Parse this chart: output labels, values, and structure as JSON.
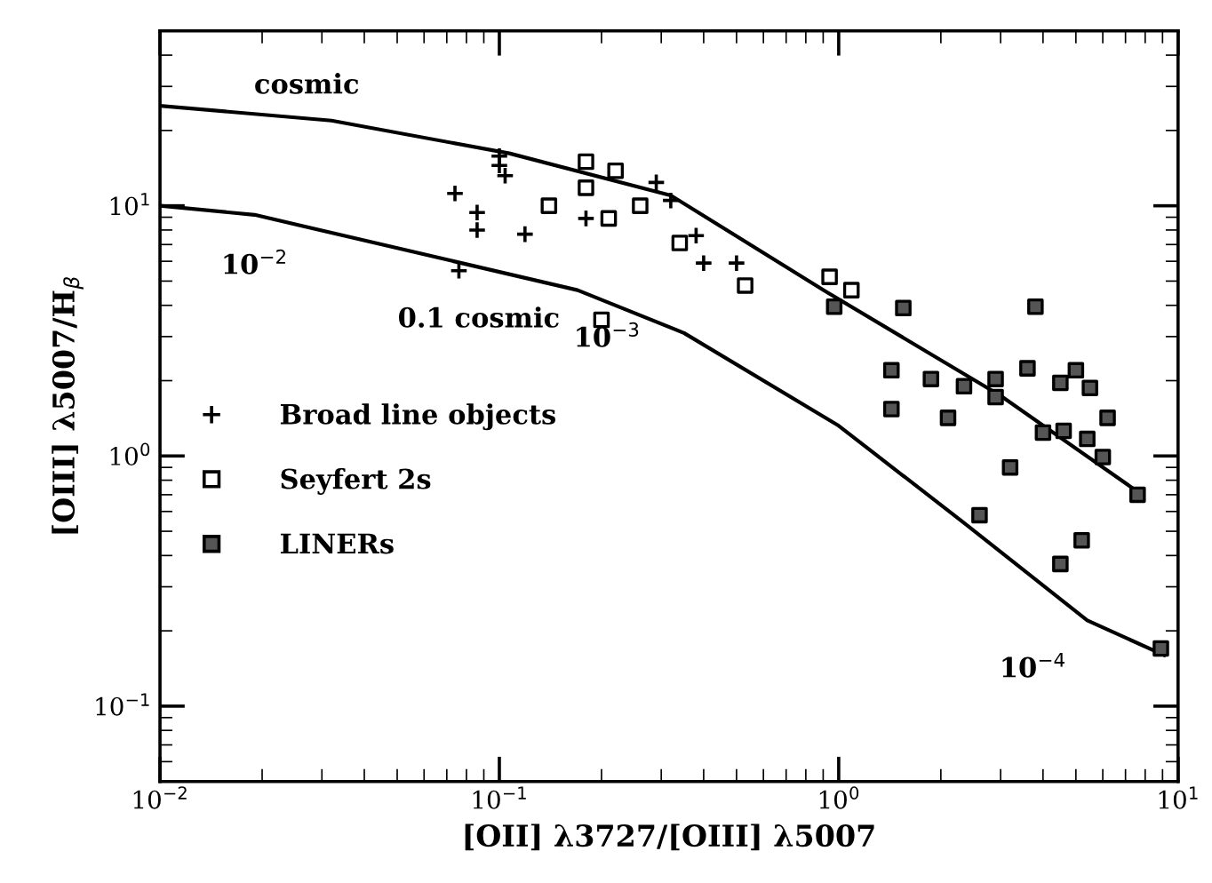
{
  "chart_data": {
    "type": "scatter",
    "xlabel": "[OII] λ3727/[OIII] λ5007",
    "ylabel": "[OIII] λ5007/H$_{β}$",
    "log": "xy",
    "xlim": [
      0.01,
      10
    ],
    "ylim": [
      0.05,
      50
    ],
    "xticks": [
      {
        "value": 0.01,
        "label": "10$^{−2}$"
      },
      {
        "value": 0.1,
        "label": "10$^{−1}$"
      },
      {
        "value": 1,
        "label": "10$^{0}$"
      },
      {
        "value": 10,
        "label": "10$^{1}$"
      }
    ],
    "yticks": [
      {
        "value": 0.1,
        "label": "10$^{−1}$"
      },
      {
        "value": 1,
        "label": "10$^{0}$"
      },
      {
        "value": 10,
        "label": "10$^{1}$"
      }
    ],
    "grid": false,
    "legend": "center left",
    "series": [
      {
        "name": "Broad line objects",
        "marker": "cross",
        "color": "#000000",
        "x": [
          0.1,
          0.1,
          0.104,
          0.074,
          0.086,
          0.086,
          0.119,
          0.18,
          0.076,
          0.29,
          0.32,
          0.38,
          0.4,
          0.5
        ],
        "values": [
          15.8,
          14.5,
          13.2,
          11.2,
          9.4,
          8.0,
          7.7,
          8.9,
          5.5,
          12.4,
          10.5,
          7.6,
          5.9,
          5.9
        ]
      },
      {
        "name": "Seyfert 2s",
        "marker": "square",
        "color": "#ffffff",
        "x": [
          0.18,
          0.22,
          0.18,
          0.14,
          0.21,
          0.26,
          0.34,
          0.2,
          0.53,
          0.94,
          1.09
        ],
        "values": [
          15.0,
          13.8,
          11.8,
          10.0,
          8.9,
          10.0,
          7.1,
          3.5,
          4.8,
          5.2,
          4.6
        ]
      },
      {
        "name": "LINERs",
        "marker": "square",
        "color": "#555555",
        "x": [
          0.97,
          1.55,
          3.8,
          1.43,
          1.87,
          2.34,
          2.9,
          2.9,
          3.6,
          4.5,
          5.0,
          5.5,
          6.2,
          1.43,
          2.1,
          4.0,
          4.6,
          5.4,
          6.0,
          3.2,
          2.6,
          5.2,
          4.5,
          7.6,
          8.9
        ],
        "values": [
          3.95,
          3.9,
          3.95,
          2.2,
          2.03,
          1.9,
          2.03,
          1.72,
          2.24,
          1.96,
          2.2,
          1.87,
          1.42,
          1.54,
          1.42,
          1.24,
          1.26,
          1.17,
          0.99,
          0.9,
          0.58,
          0.46,
          0.37,
          0.7,
          0.17
        ]
      },
      {
        "type": "line",
        "marker": "none",
        "color": "#000000",
        "x": [
          0.01,
          0.032,
          0.107,
          0.32,
          0.91,
          3.0,
          7.6
        ],
        "values": [
          25.1,
          21.9,
          16.2,
          11.0,
          4.57,
          1.74,
          0.72
        ]
      },
      {
        "type": "line",
        "marker": "none",
        "color": "#000000",
        "x": [
          0.01,
          0.019,
          0.17,
          0.35,
          1.0,
          2.34,
          5.4,
          9.1
        ],
        "values": [
          10,
          9.2,
          4.6,
          3.1,
          1.32,
          0.54,
          0.22,
          0.16
        ]
      }
    ],
    "annotations": [
      {
        "text": "cosmic",
        "x": 0.032,
        "y": 21.9
      },
      {
        "text": "0.1 cosmic",
        "x": 0.17,
        "y": 4.6
      },
      {
        "text": "10$^{−2}$",
        "x": 0.019,
        "y": 9.2
      },
      {
        "text": "10$^{−3}$",
        "x": 0.17,
        "y": 4.6
      },
      {
        "text": "10$^{−4}$",
        "x": 5.4,
        "y": 0.22
      }
    ]
  }
}
